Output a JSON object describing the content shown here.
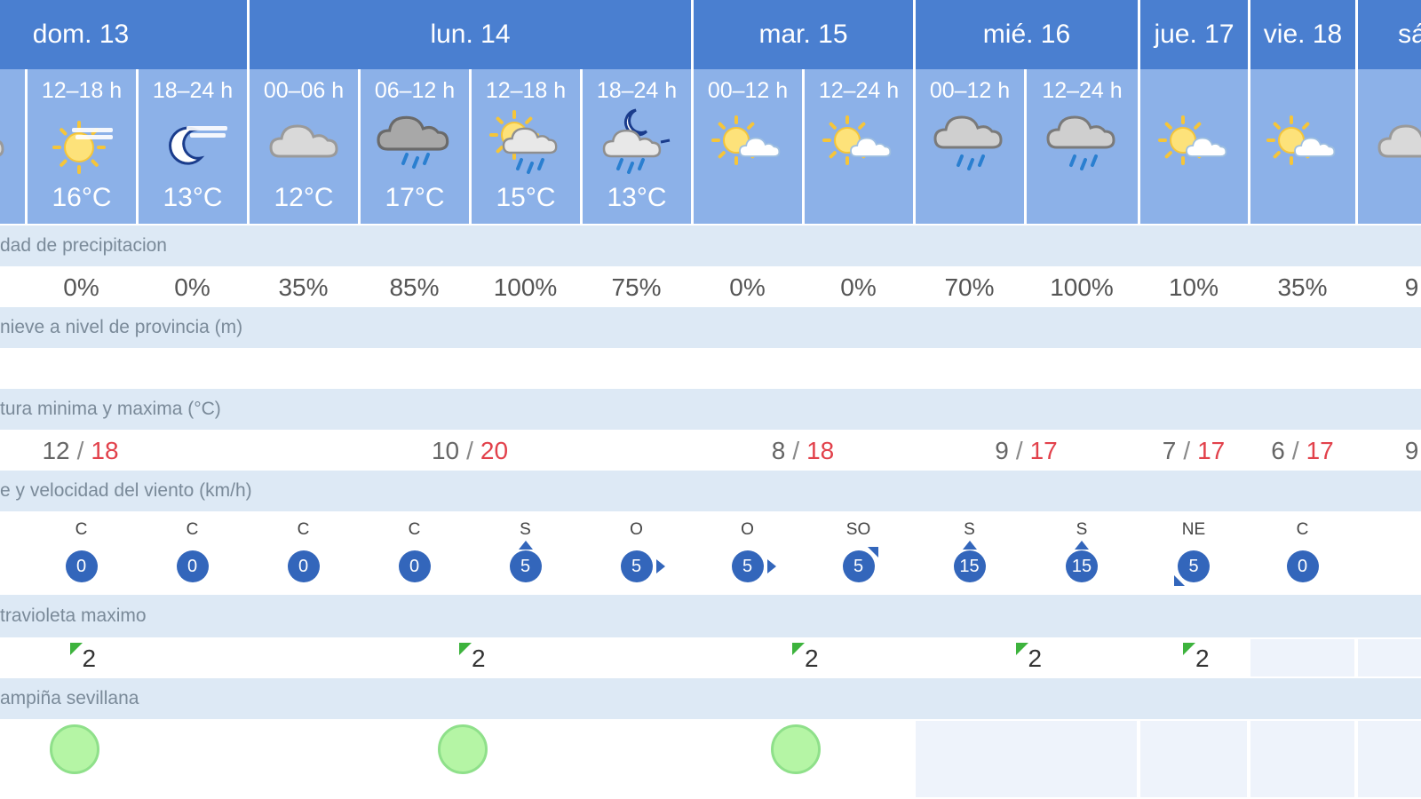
{
  "days": [
    {
      "label": "dom. 13"
    },
    {
      "label": "lun. 14"
    },
    {
      "label": "mar. 15"
    },
    {
      "label": "mié. 16"
    },
    {
      "label": "jue. 17"
    },
    {
      "label": "vie. 18"
    },
    {
      "label": "sá"
    }
  ],
  "periods": [
    {
      "label": "h",
      "icon": "cloud-icon",
      "temp": ""
    },
    {
      "label": "12–18 h",
      "icon": "hazy-sun-icon",
      "temp": "16°C"
    },
    {
      "label": "18–24 h",
      "icon": "hazy-moon-icon",
      "temp": "13°C"
    },
    {
      "label": "00–06 h",
      "icon": "cloud-icon",
      "temp": "12°C"
    },
    {
      "label": "06–12 h",
      "icon": "dark-cloud-rain-icon",
      "temp": "17°C"
    },
    {
      "label": "12–18 h",
      "icon": "sun-cloud-rain-icon",
      "temp": "15°C"
    },
    {
      "label": "18–24 h",
      "icon": "moon-cloud-rain-icon",
      "temp": "13°C"
    },
    {
      "label": "00–12 h",
      "icon": "sun-cloud-icon",
      "temp": ""
    },
    {
      "label": "12–24 h",
      "icon": "sun-cloud-icon",
      "temp": ""
    },
    {
      "label": "00–12 h",
      "icon": "cloud-rain-icon",
      "temp": ""
    },
    {
      "label": "12–24 h",
      "icon": "cloud-rain-icon",
      "temp": ""
    },
    {
      "label": "",
      "icon": "sun-cloud-icon",
      "temp": ""
    },
    {
      "label": "",
      "icon": "sun-cloud-icon",
      "temp": ""
    },
    {
      "label": "",
      "icon": "cloud-icon",
      "temp": ""
    }
  ],
  "sections": {
    "precip": "dad de precipitacion",
    "snow": "nieve a nivel de provincia (m)",
    "temp": "tura minima y maxima (°C)",
    "wind": "e y velocidad del viento (km/h)",
    "uv": "travioleta maximo",
    "air": "ampiña sevillana"
  },
  "precip": [
    "",
    "0%",
    "0%",
    "35%",
    "85%",
    "100%",
    "75%",
    "0%",
    "0%",
    "70%",
    "100%",
    "10%",
    "35%",
    "9"
  ],
  "temps": [
    {
      "min": "12",
      "max": "18"
    },
    {
      "min": "10",
      "max": "20"
    },
    {
      "min": "8",
      "max": "18"
    },
    {
      "min": "9",
      "max": "17"
    },
    {
      "min": "7",
      "max": "17"
    },
    {
      "min": "6",
      "max": "17"
    },
    {
      "min": "9",
      "max": ""
    }
  ],
  "temp_sep": "/",
  "wind": [
    {
      "dir": "",
      "speed": "",
      "arrow": "none"
    },
    {
      "dir": "C",
      "speed": "0",
      "arrow": "none"
    },
    {
      "dir": "C",
      "speed": "0",
      "arrow": "none"
    },
    {
      "dir": "C",
      "speed": "0",
      "arrow": "none"
    },
    {
      "dir": "C",
      "speed": "0",
      "arrow": "none"
    },
    {
      "dir": "S",
      "speed": "5",
      "arrow": "up"
    },
    {
      "dir": "O",
      "speed": "5",
      "arrow": "right"
    },
    {
      "dir": "O",
      "speed": "5",
      "arrow": "right"
    },
    {
      "dir": "SO",
      "speed": "5",
      "arrow": "upright"
    },
    {
      "dir": "S",
      "speed": "15",
      "arrow": "up"
    },
    {
      "dir": "S",
      "speed": "15",
      "arrow": "up"
    },
    {
      "dir": "NE",
      "speed": "5",
      "arrow": "downleft"
    },
    {
      "dir": "C",
      "speed": "0",
      "arrow": "none"
    },
    {
      "dir": "",
      "speed": "",
      "arrow": "none"
    }
  ],
  "uv": [
    "2",
    "2",
    "2",
    "2",
    "2",
    "",
    ""
  ],
  "air_quality": [
    "good",
    "good",
    "good",
    "",
    "",
    "",
    ""
  ],
  "colors": {
    "header": "#4a7fd0",
    "period": "#8cb1e8",
    "band": "#dde9f5",
    "tmax": "#e2414b",
    "wind_circle": "#3366bb",
    "uv_flag": "#3db33d",
    "air_good": "#b5f5a5"
  }
}
